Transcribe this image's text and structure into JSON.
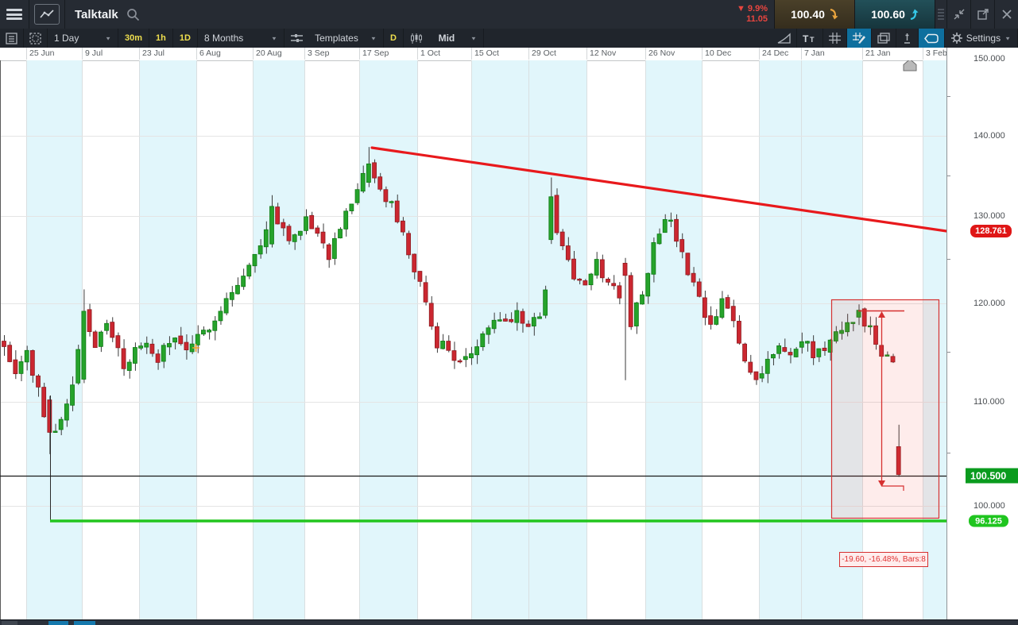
{
  "header": {
    "title": "Talktalk",
    "change_arrow": "▼",
    "change_pct": "9.9%",
    "change_value": "11.05",
    "sell_price": "100.40",
    "buy_price": "100.60"
  },
  "toolbar": {
    "period": "1 Day",
    "timeframes": [
      "30m",
      "1h",
      "1D"
    ],
    "range": "8 Months",
    "templates_label": "Templates",
    "interval_badge": "D",
    "price_type": "Mid",
    "settings_label": "Settings"
  },
  "axis": {
    "x_labels": [
      "25 Jun",
      "9 Jul",
      "23 Jul",
      "6 Aug",
      "20 Aug",
      "3 Sep",
      "17 Sep",
      "1 Oct",
      "15 Oct",
      "29 Oct",
      "12 Nov",
      "26 Nov",
      "10 Dec",
      "24 Dec",
      "7 Jan",
      "21 Jan",
      "3 Feb"
    ],
    "y_labels": [
      "150.000",
      "140.000",
      "130.000",
      "120.000",
      "110.000",
      "100.000"
    ]
  },
  "badges": {
    "trendline_price": "128.761",
    "current_price": "100.500",
    "support_price": "96.125"
  },
  "measure_label": "-19.60, -16.48%, Bars:8",
  "colors": {
    "up_candle": "#26a32b",
    "down_candle": "#cb2730",
    "trendline": "#e8191c",
    "support_line": "#22c51e",
    "price_line": "#1a1a1a",
    "band_cyan": "#e1f6fb",
    "accent_blue": "#0e6f9e",
    "sell_arrow": "#e8a33d",
    "buy_arrow": "#35c8e8",
    "change_red": "#e8453f"
  },
  "chart_data": {
    "type": "candlestick",
    "title": "Talktalk 1 Day, 8 Months",
    "x_tick_labels": [
      "25 Jun",
      "9 Jul",
      "23 Jul",
      "6 Aug",
      "20 Aug",
      "3 Sep",
      "17 Sep",
      "1 Oct",
      "15 Oct",
      "29 Oct",
      "12 Nov",
      "26 Nov",
      "10 Dec",
      "24 Dec",
      "7 Jan",
      "21 Jan",
      "3 Feb"
    ],
    "y_ticks": [
      150,
      140,
      130,
      120,
      110,
      100
    ],
    "ylim": [
      96,
      151
    ],
    "bars_total": 158,
    "price_line": 100.5,
    "support_line": 96.125,
    "trendline": {
      "from_bar": 64,
      "from_price": 138.5,
      "to_price": 128.761
    },
    "measure": {
      "change": -19.6,
      "percent": -16.48,
      "bars": 8,
      "from_price": 119.9,
      "to_price": 100.3
    },
    "waypoints": [
      [
        0,
        116
      ],
      [
        2,
        113.5
      ],
      [
        4,
        114.8
      ],
      [
        6,
        111
      ],
      [
        8,
        107
      ],
      [
        10,
        108
      ],
      [
        12,
        112
      ],
      [
        14,
        119
      ],
      [
        16,
        116
      ],
      [
        18,
        117.6
      ],
      [
        21,
        113.8
      ],
      [
        24,
        115.8
      ],
      [
        27,
        114.6
      ],
      [
        30,
        116.4
      ],
      [
        33,
        115.2
      ],
      [
        36,
        118
      ],
      [
        39,
        120.5
      ],
      [
        42,
        123
      ],
      [
        45,
        126.5
      ],
      [
        47,
        131
      ],
      [
        49,
        128.6
      ],
      [
        51,
        127.2
      ],
      [
        53,
        130.4
      ],
      [
        55,
        128
      ],
      [
        57,
        125.6
      ],
      [
        59,
        129
      ],
      [
        61,
        131
      ],
      [
        64,
        136.4
      ],
      [
        66,
        133
      ],
      [
        68,
        131.3
      ],
      [
        70,
        127.6
      ],
      [
        72,
        124
      ],
      [
        74,
        119.6
      ],
      [
        76,
        116.2
      ],
      [
        79,
        114.6
      ],
      [
        82,
        114.2
      ],
      [
        84,
        117.4
      ],
      [
        86,
        119
      ],
      [
        88,
        118
      ],
      [
        90,
        119.4
      ],
      [
        92,
        118
      ],
      [
        94,
        118.8
      ],
      [
        95,
        121
      ],
      [
        96,
        132.4
      ],
      [
        97,
        128.6
      ],
      [
        98,
        126.6
      ],
      [
        100,
        123.2
      ],
      [
        102,
        121.6
      ],
      [
        104,
        124.4
      ],
      [
        106,
        122.2
      ],
      [
        108,
        121.2
      ],
      [
        109,
        123.2
      ],
      [
        110,
        118
      ],
      [
        112,
        121.6
      ],
      [
        114,
        126.6
      ],
      [
        116,
        130.2
      ],
      [
        118,
        127.4
      ],
      [
        120,
        123.4
      ],
      [
        122,
        120.2
      ],
      [
        124,
        117.2
      ],
      [
        126,
        120.4
      ],
      [
        128,
        118
      ],
      [
        130,
        114.2
      ],
      [
        132,
        112.4
      ],
      [
        134,
        114.6
      ],
      [
        136,
        115.4
      ],
      [
        138,
        114.6
      ],
      [
        140,
        116
      ],
      [
        142,
        115
      ],
      [
        144,
        115.4
      ],
      [
        146,
        116.4
      ],
      [
        148,
        118
      ],
      [
        150,
        119.3
      ],
      [
        152,
        117
      ],
      [
        154,
        114.8
      ],
      [
        156,
        114.2
      ],
      [
        157,
        100.6
      ]
    ],
    "special_bars": {
      "8": [
        110.2,
        110.6,
        104.2,
        106.8
      ],
      "14": [
        112.3,
        121.6,
        111.9,
        119.2
      ],
      "47": [
        126.8,
        132.6,
        126.4,
        131.2
      ],
      "64": [
        134.2,
        138.6,
        133.6,
        136.5
      ],
      "96": [
        127.3,
        134.8,
        126.8,
        132.4
      ],
      "109": [
        124.6,
        125.2,
        112.2,
        123.2
      ],
      "150": [
        118.6,
        119.9,
        117.8,
        119.3
      ],
      "157": [
        105.3,
        107.6,
        100.4,
        100.7
      ]
    }
  }
}
